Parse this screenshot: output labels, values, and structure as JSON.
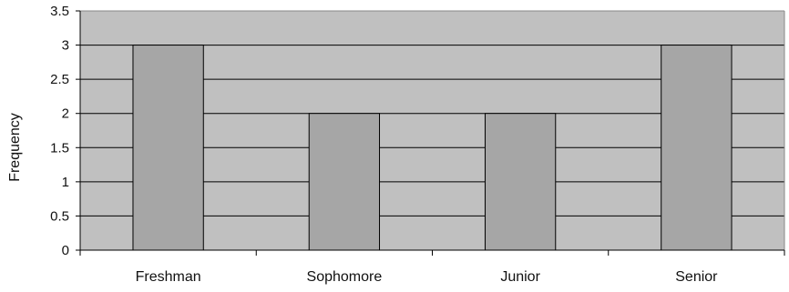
{
  "chart_data": {
    "type": "bar",
    "categories": [
      "Freshman",
      "Sophomore",
      "Junior",
      "Senior"
    ],
    "values": [
      3,
      2,
      2,
      3
    ],
    "title": "",
    "xlabel": "",
    "ylabel": "Frequency",
    "ylim": [
      0,
      3.5
    ],
    "yticks": [
      "0",
      "0.5",
      "1",
      "1.5",
      "2",
      "2.5",
      "3",
      "3.5"
    ],
    "grid": true,
    "legend": "none",
    "colors": {
      "plot_background": "#c0c0c0",
      "bar_fill": "#a6a6a6",
      "bar_stroke": "#000000",
      "gridline": "#000000"
    }
  }
}
